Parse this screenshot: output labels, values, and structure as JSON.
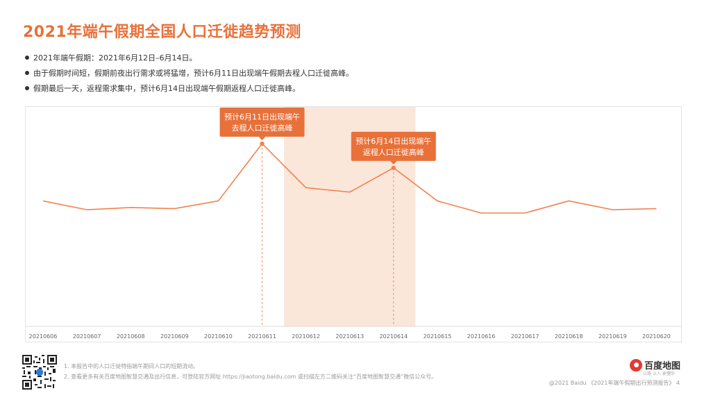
{
  "page": {
    "title": "2021年端午假期全国人口迁徙趋势预测",
    "bullets": [
      "2021年端午假期：2021年6月12日–6月14日。",
      "由于假期时间短，假期前夜出行需求或将猛增，预计6月11日出现端午假期去程人口迁徙高峰。",
      "假期最后一天，返程需求集中，预计6月14日出现端午假期返程人口迁徙高峰。"
    ],
    "footer": {
      "notes": [
        "1.  本报告中的人口迁徙特指端午期间人口的短期流动。",
        "2.  查看更多有关百度地图智慧交通及出行信息，可登陆官方网址 https://jiaotong.baidu.com 或扫描左方二维码关注“百度地图智慧交通”微信公众号。"
      ],
      "copyright": "@2021 Baidu 《2021年端午假期出行预测报告》 4",
      "logo_text": "百度地图",
      "logo_sub": "认路 认人 更懂你",
      "qr_icon": "qr-code-icon"
    }
  },
  "chart_data": {
    "type": "line",
    "title": "",
    "xlabel": "",
    "ylabel": "",
    "grid": false,
    "categories": [
      "20210606",
      "20210607",
      "20210608",
      "20210609",
      "20210610",
      "20210611",
      "20210612",
      "20210613",
      "20210614",
      "20210615",
      "20210616",
      "20210617",
      "20210618",
      "20210619",
      "20210620"
    ],
    "series": [
      {
        "color": "#f0824c",
        "values": [
          57,
          53,
          54,
          53.5,
          57,
          83,
          63,
          61,
          72,
          57,
          51.5,
          51.5,
          57,
          53,
          53.5
        ]
      }
    ],
    "ylim": [
      0,
      100
    ],
    "highlight_range": {
      "from": "20210612",
      "to": "20210614",
      "color": "#fbe6da"
    },
    "annotations": [
      {
        "x": "20210611",
        "text": [
          "预计6月11日出现端午",
          "去程人口迁徙高峰"
        ],
        "color": "#e8713a"
      },
      {
        "x": "20210614",
        "text": [
          "预计6月14日出现端午",
          "返程人口迁徙高峰"
        ],
        "color": "#e8713a"
      }
    ]
  }
}
